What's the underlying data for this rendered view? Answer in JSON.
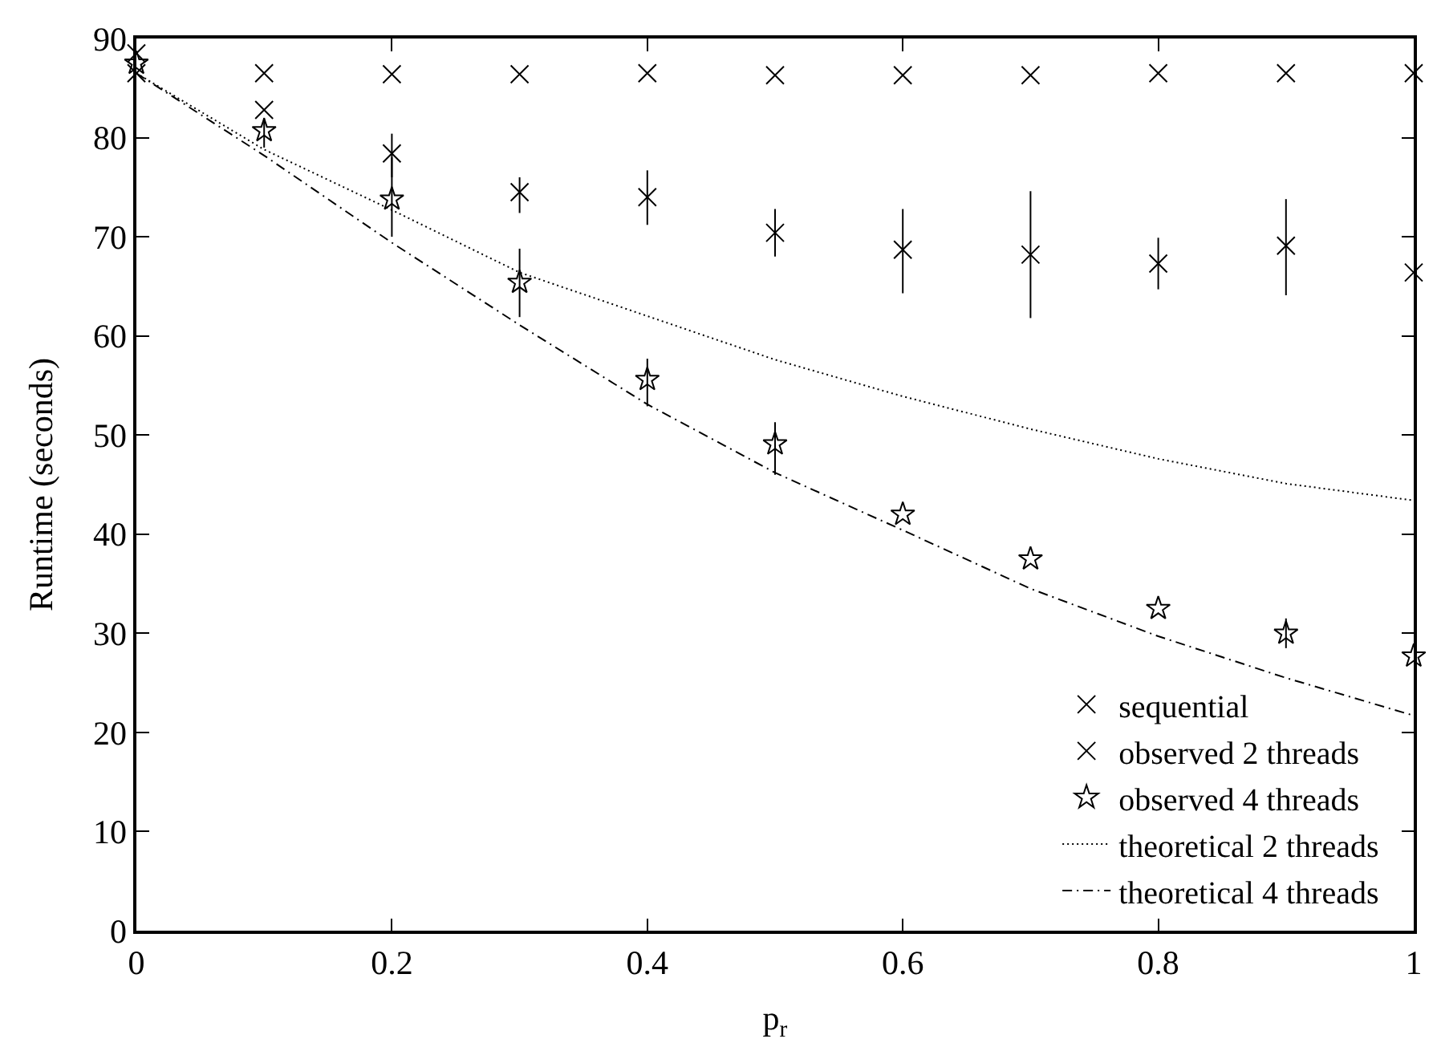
{
  "chart_data": {
    "type": "scatter",
    "xlabel": "p$_{r}$",
    "ylabel": "Runtime (seconds)",
    "x": [
      0,
      0.1,
      0.2,
      0.3,
      0.4,
      0.5,
      0.6,
      0.7,
      0.8,
      0.9,
      1
    ],
    "xlim": [
      0,
      1
    ],
    "xticks": [
      0,
      0.2,
      0.4,
      0.6,
      0.8,
      1
    ],
    "ylim": [
      0,
      90
    ],
    "yticks": [
      0,
      10,
      20,
      30,
      40,
      50,
      60,
      70,
      80,
      90
    ],
    "grid": false,
    "legend": "bottom right",
    "series": [
      {
        "name": "sequential",
        "color": "#000000",
        "marker": "cross",
        "values": [
          86.5,
          86.5,
          86.4,
          86.4,
          86.5,
          86.3,
          86.3,
          86.3,
          86.5,
          86.5,
          86.5
        ]
      },
      {
        "name": "observed 2 threads",
        "color": "#000000",
        "marker": "cross",
        "values": [
          88.5,
          82.8,
          78.4,
          74.5,
          74.0,
          70.4,
          68.7,
          68.2,
          67.3,
          69.1,
          66.4
        ],
        "errors": [
          null,
          null,
          [
            76.0,
            80.4
          ],
          [
            72.4,
            76.0
          ],
          [
            71.2,
            76.7
          ],
          [
            68.0,
            72.8
          ],
          [
            64.3,
            72.8
          ],
          [
            61.8,
            74.6
          ],
          [
            64.7,
            69.9
          ],
          [
            64.1,
            73.8
          ],
          null
        ]
      },
      {
        "name": "observed 4 threads",
        "color": "#000000",
        "marker": "star",
        "values": [
          87.5,
          80.7,
          73.8,
          65.4,
          55.6,
          49.1,
          42.0,
          37.5,
          32.5,
          30.0,
          27.7
        ],
        "errors": [
          null,
          [
            79.0,
            82.0
          ],
          [
            70.0,
            78.0
          ],
          [
            61.9,
            68.8
          ],
          [
            52.9,
            57.7
          ],
          [
            46.0,
            51.3
          ],
          null,
          null,
          null,
          [
            28.5,
            31.5
          ],
          null
        ]
      },
      {
        "name": "theoretical 2 threads",
        "type": "line",
        "line_style": "dotted",
        "color": "#000000",
        "marker": "none",
        "values": [
          86.5,
          78.8,
          72.7,
          66.4,
          62.0,
          57.6,
          53.9,
          50.6,
          47.6,
          45.1,
          43.4
        ]
      },
      {
        "name": "theoretical 4 threads",
        "type": "line",
        "line_style": "dashed",
        "color": "#000000",
        "marker": "none",
        "values": [
          86.5,
          78.2,
          69.4,
          61.1,
          53.1,
          46.2,
          40.4,
          34.5,
          29.7,
          25.5,
          21.7
        ]
      }
    ]
  }
}
